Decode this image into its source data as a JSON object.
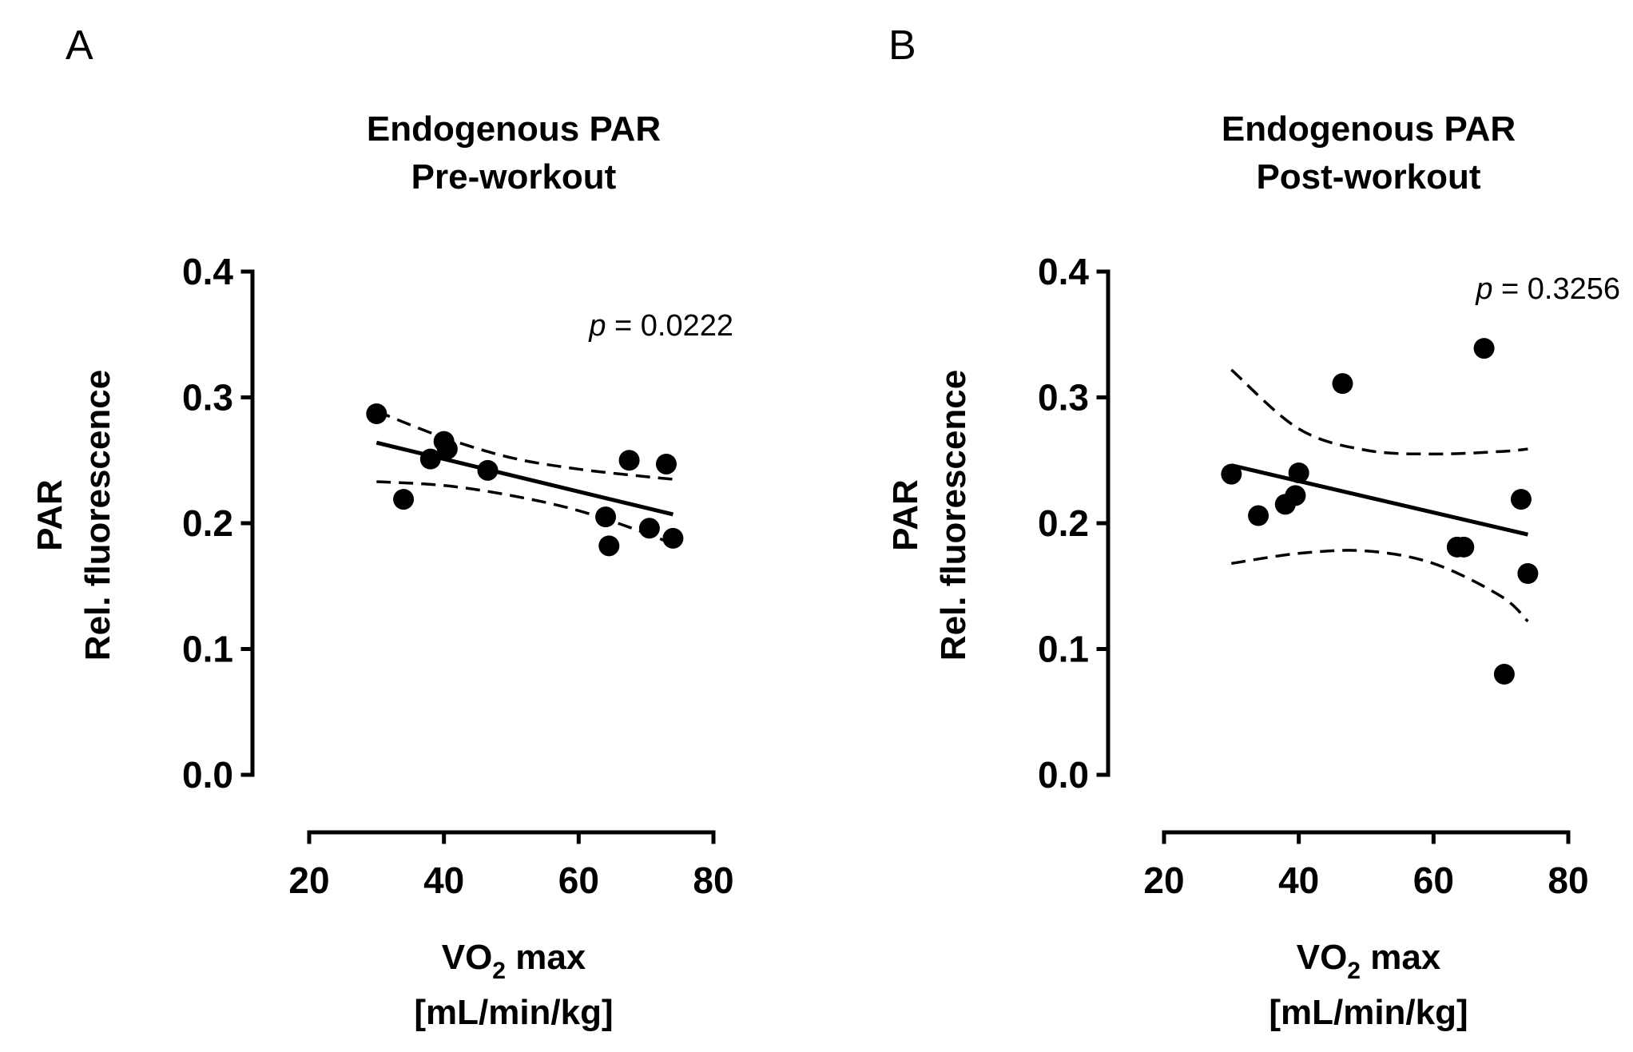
{
  "chart_data": [
    {
      "type": "scatter",
      "panel_label": "A",
      "title_line1": "Endogenous PAR",
      "title_line2": "Pre-workout",
      "ylabel_line1": "PAR",
      "ylabel_line2": "Rel. fluorescence",
      "xlabel_main": "VO",
      "xlabel_sub": "2",
      "xlabel_rest": " max",
      "xlabel_units": "[mL/min/kg]",
      "xlim": [
        20,
        80
      ],
      "ylim": [
        0.0,
        0.4
      ],
      "xticks": [
        20,
        40,
        60,
        80
      ],
      "xtick_labels": [
        "20",
        "40",
        "60",
        "80"
      ],
      "yticks": [
        0.0,
        0.1,
        0.2,
        0.3,
        0.4
      ],
      "ytick_labels": [
        "0.0",
        "0.1",
        "0.2",
        "0.3",
        "0.4"
      ],
      "p_label": "p",
      "p_value_text": " = 0.0222",
      "x": [
        30,
        34,
        38,
        40,
        40.5,
        46.5,
        64,
        64.5,
        67.5,
        70.5,
        73,
        74
      ],
      "y": [
        0.287,
        0.219,
        0.251,
        0.265,
        0.259,
        0.242,
        0.205,
        0.182,
        0.25,
        0.196,
        0.247,
        0.188
      ],
      "fit_line": {
        "x": [
          30,
          74
        ],
        "y": [
          0.264,
          0.207
        ]
      },
      "ci_upper": {
        "x": [
          30,
          40,
          50,
          60,
          70,
          74
        ],
        "y": [
          0.289,
          0.268,
          0.252,
          0.243,
          0.237,
          0.235
        ]
      },
      "ci_lower": {
        "x": [
          30,
          40,
          50,
          60,
          70,
          74
        ],
        "y": [
          0.233,
          0.23,
          0.222,
          0.21,
          0.192,
          0.183
        ]
      }
    },
    {
      "type": "scatter",
      "panel_label": "B",
      "title_line1": "Endogenous PAR",
      "title_line2": "Post-workout",
      "ylabel_line1": "PAR",
      "ylabel_line2": "Rel. fluorescence",
      "xlabel_main": "VO",
      "xlabel_sub": "2",
      "xlabel_rest": " max",
      "xlabel_units": "[mL/min/kg]",
      "xlim": [
        20,
        80
      ],
      "ylim": [
        0.0,
        0.4
      ],
      "xticks": [
        20,
        40,
        60,
        80
      ],
      "xtick_labels": [
        "20",
        "40",
        "60",
        "80"
      ],
      "yticks": [
        0.0,
        0.1,
        0.2,
        0.3,
        0.4
      ],
      "ytick_labels": [
        "0.0",
        "0.1",
        "0.2",
        "0.3",
        "0.4"
      ],
      "p_label": "p",
      "p_value_text": " = 0.3256",
      "x": [
        30,
        34,
        38,
        39.5,
        40,
        46.5,
        63.5,
        64.5,
        67.5,
        70.5,
        73,
        74
      ],
      "y": [
        0.239,
        0.206,
        0.215,
        0.222,
        0.24,
        0.311,
        0.181,
        0.181,
        0.339,
        0.08,
        0.219,
        0.16
      ],
      "fit_line": {
        "x": [
          30,
          74
        ],
        "y": [
          0.246,
          0.191
        ]
      },
      "ci_upper": {
        "x": [
          30,
          40,
          50,
          60,
          70,
          74
        ],
        "y": [
          0.322,
          0.275,
          0.258,
          0.255,
          0.257,
          0.259
        ]
      },
      "ci_lower": {
        "x": [
          30,
          40,
          50,
          60,
          70,
          74
        ],
        "y": [
          0.168,
          0.176,
          0.178,
          0.168,
          0.142,
          0.122
        ]
      }
    }
  ]
}
